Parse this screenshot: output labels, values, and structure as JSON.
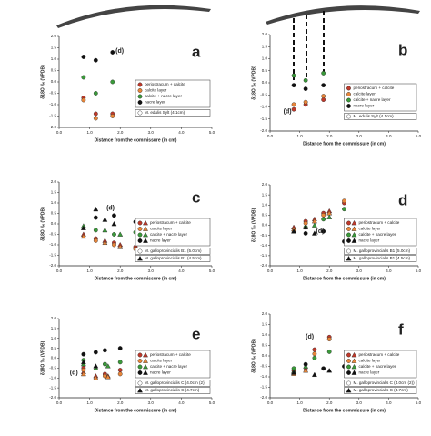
{
  "chart_data": [
    {
      "type": "scatter",
      "panel": "a",
      "y_label": "δ18O ‰ (VPDB)",
      "x_label": "Distance from the commissure (in cm)",
      "xlim": [
        0,
        5
      ],
      "ylim": [
        -2,
        2
      ],
      "xticks": [
        {
          "value": 0,
          "label": "0.0"
        },
        {
          "value": 1,
          "label": "1.0"
        },
        {
          "value": 2,
          "label": "2.0"
        },
        {
          "value": 3,
          "label": "3.0"
        },
        {
          "value": 4,
          "label": "4.0"
        },
        {
          "value": 5,
          "label": "5.0"
        }
      ],
      "yticks": [
        {
          "value": -2,
          "label": "-2.0"
        },
        {
          "value": -1.5,
          "label": "-1.5"
        },
        {
          "value": -1,
          "label": "-1.0"
        },
        {
          "value": -0.5,
          "label": "-0.5"
        },
        {
          "value": 0,
          "label": "0.0"
        },
        {
          "value": 0.5,
          "label": "0.5"
        },
        {
          "value": 1,
          "label": "1.0"
        },
        {
          "value": 1.5,
          "label": "1.5"
        },
        {
          "value": 2,
          "label": "2.0"
        }
      ],
      "series": [
        {
          "name": "periostracum + calcite",
          "color": "#c0392b",
          "x": [
            0.8,
            1.2,
            1.75
          ],
          "values": [
            -0.7,
            -1.4,
            -1.4
          ]
        },
        {
          "name": "calcite layer",
          "color": "#e8863a",
          "x": [
            0.8,
            1.2,
            1.75
          ],
          "values": [
            -0.8,
            -1.6,
            -1.5
          ]
        },
        {
          "name": "calcite + nacre layer",
          "color": "#3a9a3a",
          "x": [
            0.8,
            1.2,
            1.75
          ],
          "values": [
            0.2,
            -0.5,
            0.0
          ]
        },
        {
          "name": "nacre layer",
          "color": "#111111",
          "x": [
            0.8,
            1.2,
            1.75
          ],
          "values": [
            1.1,
            0.95,
            1.3
          ]
        }
      ],
      "specimens": [
        {
          "label": "M. edulis Sylt (4.1cm)",
          "marker": "circle"
        }
      ],
      "annotations": [
        {
          "text": "(d)",
          "x": 1.85,
          "y": 1.35
        }
      ]
    },
    {
      "type": "scatter",
      "panel": "b",
      "y_label": "δ18O ‰ (VPDB)",
      "x_label": "Distance from the commissure (in cm)",
      "xlim": [
        0,
        5
      ],
      "ylim": [
        -2,
        2
      ],
      "xticks": [
        {
          "value": 0,
          "label": "0.0"
        },
        {
          "value": 1,
          "label": "1.0"
        },
        {
          "value": 2,
          "label": "2.0"
        },
        {
          "value": 3,
          "label": "3.0"
        },
        {
          "value": 4,
          "label": "4.0"
        },
        {
          "value": 5,
          "label": "5.0"
        }
      ],
      "yticks": [
        {
          "value": -2,
          "label": "-2.0"
        },
        {
          "value": -1.5,
          "label": "-1.5"
        },
        {
          "value": -1,
          "label": "-1.0"
        },
        {
          "value": -0.5,
          "label": "-0.5"
        },
        {
          "value": 0,
          "label": "0.0"
        },
        {
          "value": 0.5,
          "label": "0.5"
        },
        {
          "value": 1,
          "label": "1.0"
        },
        {
          "value": 1.5,
          "label": "1.5"
        },
        {
          "value": 2,
          "label": "2.0"
        }
      ],
      "series": [
        {
          "name": "periostracum + calcite",
          "color": "#c0392b",
          "x": [
            0.8,
            1.2,
            1.8
          ],
          "values": [
            -1.1,
            -0.9,
            -0.7
          ]
        },
        {
          "name": "calcite layer",
          "color": "#e8863a",
          "x": [
            0.8,
            1.2,
            1.8
          ],
          "values": [
            -0.9,
            -0.8,
            -0.55
          ]
        },
        {
          "name": "calcite + nacre layer",
          "color": "#3a9a3a",
          "x": [
            0.8,
            1.2,
            1.8
          ],
          "values": [
            0.3,
            0.1,
            0.4
          ]
        },
        {
          "name": "nacre layer",
          "color": "#111111",
          "x": [
            0.8,
            1.2,
            1.8
          ],
          "values": [
            -0.1,
            -0.25,
            -0.1
          ]
        }
      ],
      "specimens": [
        {
          "label": "M. edulis Sylt (4.1cm)",
          "marker": "circle"
        }
      ],
      "annotations": [
        {
          "text": "(d)",
          "x": 0.45,
          "y": -1.2
        }
      ]
    },
    {
      "type": "scatter",
      "panel": "c",
      "y_label": "δ18O ‰ (VPDB)",
      "x_label": "Distance from the commissure (in cm)",
      "xlim": [
        0,
        5
      ],
      "ylim": [
        -2,
        2
      ],
      "xticks": [
        {
          "value": 0,
          "label": "0.0"
        },
        {
          "value": 1,
          "label": "1.0"
        },
        {
          "value": 2,
          "label": "2.0"
        },
        {
          "value": 3,
          "label": "3.0"
        },
        {
          "value": 4,
          "label": "4.0"
        },
        {
          "value": 5,
          "label": "5.0"
        }
      ],
      "yticks": [
        {
          "value": -2,
          "label": "-2.0"
        },
        {
          "value": -1.5,
          "label": "-1.5"
        },
        {
          "value": -1,
          "label": "-1.0"
        },
        {
          "value": -0.5,
          "label": "-0.5"
        },
        {
          "value": 0,
          "label": "0.0"
        },
        {
          "value": 0.5,
          "label": "0.5"
        },
        {
          "value": 1,
          "label": "1.0"
        },
        {
          "value": 1.5,
          "label": "1.5"
        },
        {
          "value": 2,
          "label": "2.0"
        }
      ],
      "series": [
        {
          "name": "periostracum + calcite",
          "color": "#c0392b",
          "x": [
            1.2,
            1.8,
            2.5
          ],
          "values": [
            -0.7,
            -0.9,
            -1.1
          ],
          "x2": [
            0.8,
            1.5,
            2.0
          ],
          "values2": [
            -0.5,
            -0.8,
            -1.0
          ]
        },
        {
          "name": "calcite layer",
          "color": "#e8863a",
          "x": [
            1.2,
            1.8,
            2.5
          ],
          "values": [
            -0.8,
            -1.0,
            -1.2
          ],
          "x2": [
            0.8,
            1.5,
            2.0
          ],
          "values2": [
            -0.6,
            -0.9,
            -1.1
          ]
        },
        {
          "name": "calcite + nacre layer",
          "color": "#3a9a3a",
          "x": [
            1.2,
            1.8,
            2.5
          ],
          "values": [
            -0.3,
            -0.5,
            -0.4
          ],
          "x2": [
            0.8,
            1.5,
            2.0
          ],
          "values2": [
            -0.1,
            -0.3,
            -0.5
          ]
        },
        {
          "name": "nacre layer",
          "color": "#111111",
          "x": [
            1.2,
            1.8,
            2.5
          ],
          "values": [
            0.3,
            0.4,
            0.1
          ],
          "x2": [
            0.8,
            1.2,
            1.5,
            1.8
          ],
          "values2": [
            -0.2,
            0.7,
            0.2,
            0.0
          ]
        }
      ],
      "specimens": [
        {
          "label": "M. galloprovincialis B1 (5.0cm)",
          "marker": "circle"
        },
        {
          "label": "M. galloprovincialis B1 (4.5cm)",
          "marker": "triangle"
        }
      ],
      "annotations": [
        {
          "text": "(d)",
          "x": 1.55,
          "y": 0.75
        }
      ]
    },
    {
      "type": "scatter",
      "panel": "d",
      "y_label": "δ18O ‰ (VPDB)",
      "x_label": "Distance from the commissure (in cm)",
      "xlim": [
        0,
        5
      ],
      "ylim": [
        -2,
        2
      ],
      "xticks": [
        {
          "value": 0,
          "label": "0.0"
        },
        {
          "value": 1,
          "label": "1.0"
        },
        {
          "value": 2,
          "label": "2.0"
        },
        {
          "value": 3,
          "label": "3.0"
        },
        {
          "value": 4,
          "label": "4.0"
        },
        {
          "value": 5,
          "label": "5.0"
        }
      ],
      "yticks": [
        {
          "value": -2,
          "label": "-2.0"
        },
        {
          "value": -1.5,
          "label": "-1.5"
        },
        {
          "value": -1,
          "label": "-1.0"
        },
        {
          "value": -0.5,
          "label": "-0.5"
        },
        {
          "value": 0,
          "label": "0.0"
        },
        {
          "value": 0.5,
          "label": "0.5"
        },
        {
          "value": 1,
          "label": "1.0"
        },
        {
          "value": 1.5,
          "label": "1.5"
        },
        {
          "value": 2,
          "label": "2.0"
        }
      ],
      "series": [
        {
          "name": "periostracum + calcite",
          "color": "#c0392b",
          "x": [
            1.2,
            1.8,
            2.5
          ],
          "values": [
            0.2,
            0.6,
            1.1
          ],
          "x2": [
            0.8,
            1.5,
            2.0
          ],
          "values2": [
            -0.1,
            0.3,
            0.7
          ]
        },
        {
          "name": "calcite layer",
          "color": "#e8863a",
          "x": [
            1.2,
            1.8,
            2.5
          ],
          "values": [
            0.1,
            0.5,
            1.2
          ],
          "x2": [
            0.8,
            1.5,
            2.0
          ],
          "values2": [
            -0.2,
            0.2,
            0.6
          ]
        },
        {
          "name": "calcite + nacre layer",
          "color": "#3a9a3a",
          "x": [
            1.2,
            1.8,
            2.5
          ],
          "values": [
            -0.1,
            0.3,
            0.8
          ],
          "x2": [
            0.8,
            1.5,
            2.0
          ],
          "values2": [
            -0.3,
            0.0,
            0.4
          ]
        },
        {
          "name": "nacre layer",
          "color": "#111111",
          "x": [
            1.2,
            1.8,
            2.5
          ],
          "values": [
            -0.4,
            -0.3,
            -0.8
          ],
          "x2": [
            0.8,
            1.2,
            1.5
          ],
          "values2": [
            -0.3,
            -0.1,
            -0.4
          ]
        }
      ],
      "specimens": [
        {
          "label": "M. galloprovincialis B1 (5.0cm)",
          "marker": "circle"
        },
        {
          "label": "M. galloprovincialis B1 (4.5cm)",
          "marker": "triangle"
        }
      ],
      "annotations": [
        {
          "text": "(d)",
          "x": 1.55,
          "y": -0.3
        }
      ]
    },
    {
      "type": "scatter",
      "panel": "e",
      "y_label": "δ18O ‰ (VPDB)",
      "x_label": "Distance from the commissure (in cm)",
      "xlim": [
        0,
        5
      ],
      "ylim": [
        -2,
        2
      ],
      "xticks": [
        {
          "value": 0,
          "label": "0.0"
        },
        {
          "value": 1,
          "label": "1.0"
        },
        {
          "value": 2,
          "label": "2.0"
        },
        {
          "value": 3,
          "label": "3.0"
        },
        {
          "value": 4,
          "label": "4.0"
        },
        {
          "value": 5,
          "label": "5.0"
        }
      ],
      "yticks": [
        {
          "value": -2,
          "label": "-2.0"
        },
        {
          "value": -1.5,
          "label": "-1.5"
        },
        {
          "value": -1,
          "label": "-1.0"
        },
        {
          "value": -0.5,
          "label": "-0.5"
        },
        {
          "value": 0,
          "label": "0.0"
        },
        {
          "value": 0.5,
          "label": "0.5"
        },
        {
          "value": 1,
          "label": "1.0"
        },
        {
          "value": 1.5,
          "label": "1.5"
        },
        {
          "value": 2,
          "label": "2.0"
        }
      ],
      "series": [
        {
          "name": "periostracum + calcite",
          "color": "#c0392b",
          "x": [
            0.8,
            1.5,
            2.0
          ],
          "values": [
            -0.5,
            -0.8,
            -0.6
          ],
          "x2": [
            0.8,
            1.2,
            1.6
          ],
          "values2": [
            -0.7,
            -0.9,
            -0.9
          ]
        },
        {
          "name": "calcite layer",
          "color": "#e8863a",
          "x": [
            0.8,
            1.5,
            2.0
          ],
          "values": [
            -0.6,
            -0.9,
            -0.8
          ],
          "x2": [
            0.8,
            1.2,
            1.6
          ],
          "values2": [
            -0.8,
            -1.0,
            -0.95
          ]
        },
        {
          "name": "calcite + nacre layer",
          "color": "#3a9a3a",
          "x": [
            0.8,
            1.5,
            2.0
          ],
          "values": [
            -0.1,
            -0.3,
            -0.2
          ],
          "x2": [
            0.8,
            1.2,
            1.6
          ],
          "values2": [
            -0.3,
            -0.5,
            -0.4
          ]
        },
        {
          "name": "nacre layer",
          "color": "#111111",
          "x": [
            0.8,
            1.2,
            1.5,
            2.0
          ],
          "values": [
            0.2,
            0.3,
            0.4,
            0.5
          ],
          "x2": [
            0.8,
            1.2
          ],
          "values2": [
            -0.2,
            -0.4
          ]
        }
      ],
      "specimens": [
        {
          "label": "M. galloprovincialis C (4.0cm (2))",
          "marker": "circle"
        },
        {
          "label": "M. galloprovincialis C (4.7cm)",
          "marker": "triangle"
        }
      ],
      "annotations": [
        {
          "text": "(d)",
          "x": 0.35,
          "y": -0.75
        }
      ]
    },
    {
      "type": "scatter",
      "panel": "f",
      "y_label": "δ18O ‰ (VPDB)",
      "x_label": "Distance from the commissure (in cm)",
      "xlim": [
        0,
        5
      ],
      "ylim": [
        -2,
        2
      ],
      "xticks": [
        {
          "value": 0,
          "label": "0.0"
        },
        {
          "value": 1,
          "label": "1.0"
        },
        {
          "value": 2,
          "label": "2.0"
        },
        {
          "value": 3,
          "label": "3.0"
        },
        {
          "value": 4,
          "label": "4.0"
        },
        {
          "value": 5,
          "label": "5.0"
        }
      ],
      "yticks": [
        {
          "value": -2,
          "label": "-2.0"
        },
        {
          "value": -1.5,
          "label": "-1.5"
        },
        {
          "value": -1,
          "label": "-1.0"
        },
        {
          "value": -0.5,
          "label": "-0.5"
        },
        {
          "value": 0,
          "label": "0.0"
        },
        {
          "value": 0.5,
          "label": "0.5"
        },
        {
          "value": 1,
          "label": "1.0"
        },
        {
          "value": 1.5,
          "label": "1.5"
        },
        {
          "value": 2,
          "label": "2.0"
        }
      ],
      "series": [
        {
          "name": "periostracum + calcite",
          "color": "#c0392b",
          "x": [
            0.8,
            1.5,
            2.0
          ],
          "values": [
            -0.7,
            0.3,
            0.9
          ],
          "x2": [
            0.8,
            1.2
          ],
          "values2": [
            -0.8,
            -0.6
          ]
        },
        {
          "name": "calcite layer",
          "color": "#e8863a",
          "x": [
            0.8,
            1.5,
            2.0
          ],
          "values": [
            -0.8,
            0.1,
            0.8
          ],
          "x2": [
            0.8,
            1.2
          ],
          "values2": [
            -0.85,
            -0.7
          ]
        },
        {
          "name": "calcite + nacre layer",
          "color": "#3a9a3a",
          "x": [
            0.8,
            1.5,
            2.0
          ],
          "values": [
            -0.6,
            -0.1,
            0.2
          ],
          "x2": [
            0.8,
            1.2
          ],
          "values2": [
            -0.75,
            -0.5
          ]
        },
        {
          "name": "nacre layer",
          "color": "#111111",
          "x": [
            1.2,
            1.8,
            2.5
          ],
          "values": [
            -0.4,
            -0.6,
            -0.5
          ],
          "x2": [
            0.8,
            1.5,
            2.0,
            2.6
          ],
          "values2": [
            -0.8,
            -0.9,
            -0.7,
            -0.8
          ]
        }
      ],
      "specimens": [
        {
          "label": "M. galloprovincialis C (4.0cm (2))",
          "marker": "circle"
        },
        {
          "label": "M. galloprovincialis C (4.7cm)",
          "marker": "triangle"
        }
      ],
      "annotations": [
        {
          "text": "(d)",
          "x": 1.2,
          "y": 0.9
        }
      ]
    }
  ]
}
